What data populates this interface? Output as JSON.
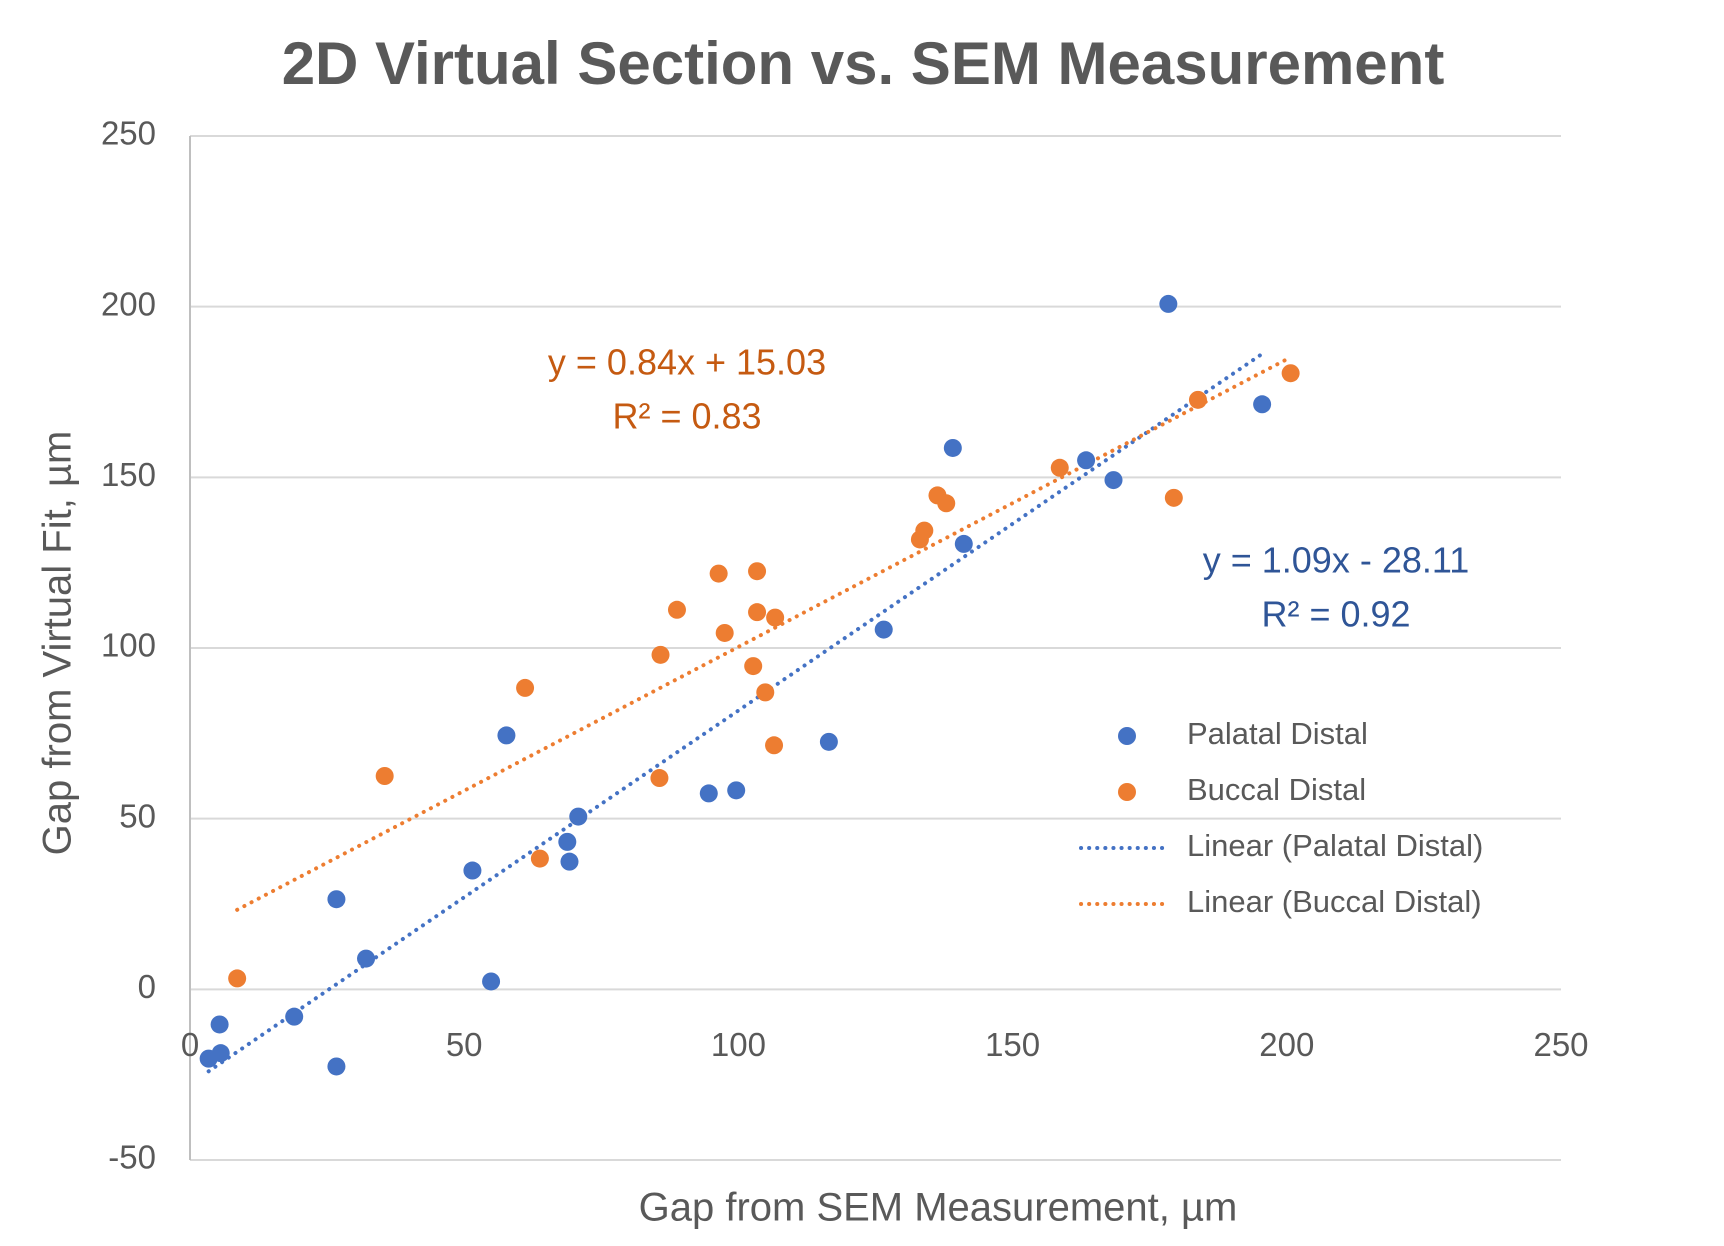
{
  "chart_data": {
    "type": "scatter",
    "title": "2D Virtual Section vs. SEM Measurement",
    "x_label": "Gap from SEM Measurement, µm",
    "y_label": "Gap from Virtual Fit, µm",
    "xlim": [
      0,
      250
    ],
    "xticks": [
      0,
      50,
      100,
      150,
      200,
      250
    ],
    "ylim": [
      -50,
      250
    ],
    "yticks": [
      -50,
      0,
      50,
      100,
      150,
      200,
      250
    ],
    "grid": true,
    "legend": "right",
    "series": [
      {
        "name": "Palatal Distal",
        "color": "#4472c4",
        "x": [
          3.4,
          5.6,
          5.4,
          19,
          26.7,
          26.7,
          32.1,
          51.5,
          54.9,
          57.7,
          68.8,
          69.2,
          70.8,
          94.6,
          99.6,
          116.5,
          126.5,
          139.1,
          141.1,
          163.4,
          168.4,
          178.4,
          195.5
        ],
        "values": [
          -20.3,
          -18.7,
          -10.3,
          -8,
          -22.6,
          26.4,
          9.0,
          34.8,
          2.3,
          74.4,
          43.2,
          37.4,
          50.6,
          57.4,
          58.3,
          72.5,
          105.4,
          158.6,
          130.5,
          155,
          149.2,
          200.8,
          171.4
        ]
      },
      {
        "name": "Buccal Distal",
        "color": "#ed7d31",
        "x": [
          8.6,
          35.5,
          61.1,
          63.8,
          85.6,
          85.8,
          88.8,
          96.4,
          97.5,
          102.7,
          103.4,
          103.4,
          104.9,
          106.5,
          106.7,
          133.1,
          133.9,
          136.3,
          137.9,
          158.6,
          179.4,
          183.8,
          200.7
        ],
        "values": [
          3.2,
          62.5,
          88.3,
          38.3,
          61.9,
          98,
          111.2,
          121.8,
          104.4,
          94.7,
          122.5,
          110.5,
          87,
          71.5,
          108.9,
          131.8,
          134.4,
          144.7,
          142.4,
          152.8,
          144,
          172.7,
          180.5
        ]
      }
    ],
    "trendlines": [
      {
        "name": "Linear (Palatal Distal)",
        "color": "#4472c4"
      },
      {
        "name": "Linear (Buccal Distal)",
        "color": "#ed7d31"
      }
    ],
    "annotations": [
      {
        "text": "y = 0.84x + 15.03",
        "color": "#c55a11"
      },
      {
        "text": "R² = 0.83",
        "color": "#c55a11"
      },
      {
        "text": "y = 1.09x - 28.11",
        "color": "#2f5597"
      },
      {
        "text": "R² = 0.92",
        "color": "#2f5597"
      }
    ]
  }
}
